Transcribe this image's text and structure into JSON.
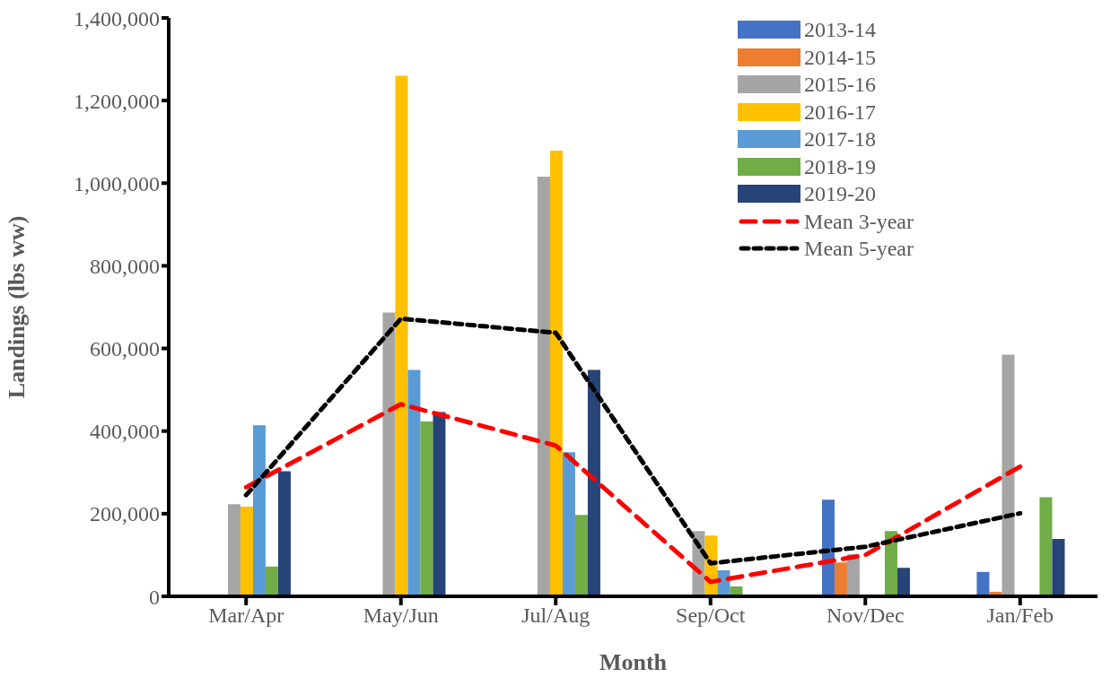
{
  "chart_data": {
    "type": "bar",
    "xlabel": "Month",
    "ylabel": "Landings (lbs ww)",
    "categories": [
      "Mar/Apr",
      "May/Jun",
      "Jul/Aug",
      "Sep/Oct",
      "Nov/Dec",
      "Jan/Feb"
    ],
    "series": [
      {
        "name": "2013-14",
        "color": "#4472c4",
        "values": [
          null,
          null,
          null,
          null,
          234000,
          59000
        ]
      },
      {
        "name": "2014-15",
        "color": "#ed7d31",
        "values": [
          null,
          null,
          null,
          null,
          82000,
          11000
        ]
      },
      {
        "name": "2015-16",
        "color": "#a5a5a5",
        "values": [
          223000,
          687000,
          1016000,
          158000,
          102000,
          585000
        ]
      },
      {
        "name": "2016-17",
        "color": "#ffc000",
        "values": [
          217000,
          1260000,
          1079000,
          147000,
          null,
          null
        ]
      },
      {
        "name": "2017-18",
        "color": "#5b9bd5",
        "values": [
          414000,
          548000,
          349000,
          63000,
          null,
          null
        ]
      },
      {
        "name": "2018-19",
        "color": "#70ad47",
        "values": [
          72000,
          423000,
          197000,
          24000,
          158000,
          240000
        ]
      },
      {
        "name": "2019-20",
        "color": "#264478",
        "values": [
          303000,
          446000,
          548000,
          null,
          69000,
          139000
        ]
      },
      {
        "name": "Mean 3-year",
        "type": "line",
        "color": "#ff0000",
        "line_style": "dashed",
        "values": [
          264000,
          465000,
          365000,
          35000,
          100000,
          314000
        ]
      },
      {
        "name": "Mean 5-year",
        "type": "line",
        "color": "#000000",
        "line_style": "dotted",
        "values": [
          245000,
          672000,
          638000,
          80000,
          120000,
          201000
        ]
      }
    ],
    "ylim": [
      0,
      1400000
    ],
    "yticks": [
      0,
      {
        "value": 200000,
        "label": "200,000"
      },
      {
        "value": 400000,
        "label": "400,000"
      },
      {
        "value": 600000,
        "label": "600,000"
      },
      {
        "value": 800000,
        "label": "800,000"
      },
      {
        "value": 1000000,
        "label": "1,000,000"
      },
      {
        "value": 1200000,
        "label": "1,200,000"
      },
      {
        "value": 1400000,
        "label": "1,400,000"
      }
    ],
    "legend": "top right",
    "marker": "none"
  }
}
